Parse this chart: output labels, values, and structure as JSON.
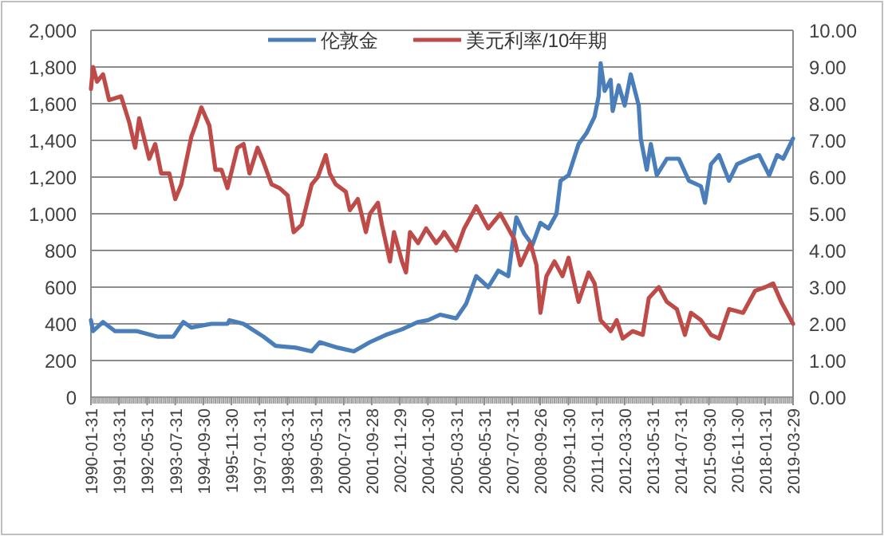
{
  "chart_data": {
    "type": "line",
    "legend": "top",
    "grid": "y",
    "marker": "none",
    "line_style": "solid",
    "xlim": [
      "1990-01-31",
      "2019-03-29"
    ],
    "xticks": [
      "1990-01-31",
      "1991-03-31",
      "1992-05-31",
      "1993-07-31",
      "1994-09-30",
      "1995-11-30",
      "1997-01-31",
      "1998-03-31",
      "1999-05-31",
      "2000-07-31",
      "2001-09-28",
      "2002-11-29",
      "2004-01-30",
      "2005-03-31",
      "2006-05-31",
      "2007-07-31",
      "2008-09-26",
      "2009-11-30",
      "2011-01-31",
      "2012-03-30",
      "2013-05-31",
      "2014-07-31",
      "2015-09-30",
      "2016-11-30",
      "2018-01-31",
      "2019-03-29"
    ],
    "ylim": [
      0,
      2000
    ],
    "yticks": [
      0,
      {
        "value": 200,
        "label": "200"
      },
      {
        "value": 400,
        "label": "400"
      },
      {
        "value": 600,
        "label": "600"
      },
      {
        "value": 800,
        "label": "800"
      },
      {
        "value": 1000,
        "label": "1,000"
      },
      {
        "value": 1200,
        "label": "1,200"
      },
      {
        "value": 1400,
        "label": "1,400"
      },
      {
        "value": 1600,
        "label": "1,600"
      },
      {
        "value": 1800,
        "label": "1,800"
      },
      {
        "value": 2000,
        "label": "2,000"
      }
    ],
    "y2lim": [
      0,
      10
    ],
    "y2ticks": [
      {
        "value": 0,
        "label": "0.00"
      },
      {
        "value": 1,
        "label": "1.00"
      },
      {
        "value": 2,
        "label": "2.00"
      },
      {
        "value": 3,
        "label": "3.00"
      },
      {
        "value": 4,
        "label": "4.00"
      },
      {
        "value": 5,
        "label": "5.00"
      },
      {
        "value": 6,
        "label": "6.00"
      },
      {
        "value": 7,
        "label": "7.00"
      },
      {
        "value": 8,
        "label": "8.00"
      },
      {
        "value": 9,
        "label": "9.00"
      },
      {
        "value": 10,
        "label": "10.00"
      }
    ],
    "series": [
      {
        "name": "伦敦金",
        "color": "#4a7ebb",
        "x": [
          "1990-01-31",
          "1990-03",
          "1990-08",
          "1991-02",
          "1992-01",
          "1992-11",
          "1993-07",
          "1993-12",
          "1994-04",
          "1995-02",
          "1995-10",
          "1995-11",
          "1996-06",
          "1997-04",
          "1997-10",
          "1998-08",
          "1999-04",
          "1999-08",
          "2000-05",
          "2001-01",
          "2001-09",
          "2002-05",
          "2003-01",
          "2003-09",
          "2004-02",
          "2004-08",
          "2005-04",
          "2005-09",
          "2006-02",
          "2006-08",
          "2007-01",
          "2007-06",
          "2007-08",
          "2007-10",
          "2008-02",
          "2008-06",
          "2008-10",
          "2009-02",
          "2009-06",
          "2009-08",
          "2009-12",
          "2010-05",
          "2010-09",
          "2011-01",
          "2011-03",
          "2011-04",
          "2011-06",
          "2011-09",
          "2011-10",
          "2012-01",
          "2012-04",
          "2012-07",
          "2012-11",
          "2012-12",
          "2013-03",
          "2013-05",
          "2013-08",
          "2014-01",
          "2014-07",
          "2014-12",
          "2015-06",
          "2015-08",
          "2015-11",
          "2016-03",
          "2016-08",
          "2016-12",
          "2017-06",
          "2017-11",
          "2018-04",
          "2018-08",
          "2018-11",
          "2019-03-29"
        ],
        "values": [
          420,
          360,
          410,
          360,
          360,
          330,
          330,
          410,
          380,
          400,
          400,
          420,
          400,
          330,
          280,
          270,
          250,
          300,
          270,
          250,
          300,
          340,
          370,
          410,
          420,
          450,
          430,
          510,
          660,
          600,
          690,
          660,
          830,
          980,
          890,
          830,
          950,
          920,
          1000,
          1180,
          1210,
          1380,
          1440,
          1530,
          1640,
          1820,
          1670,
          1730,
          1560,
          1700,
          1590,
          1760,
          1590,
          1410,
          1240,
          1380,
          1210,
          1300,
          1300,
          1180,
          1150,
          1060,
          1270,
          1320,
          1180,
          1270,
          1300,
          1320,
          1210,
          1320,
          1300,
          1410
        ]
      },
      {
        "name": "美元利率/10年期",
        "color": "#be4b48",
        "axis": "y2",
        "x": [
          "1990-01-31",
          "1990-03",
          "1990-05",
          "1990-08",
          "1990-11",
          "1991-05",
          "1991-09",
          "1991-12",
          "1992-02",
          "1992-07",
          "1992-10",
          "1993-01",
          "1993-05",
          "1993-08",
          "1993-11",
          "1994-04",
          "1994-06",
          "1994-09",
          "1995-01",
          "1995-04",
          "1995-07",
          "1995-10",
          "1996-03",
          "1996-06",
          "1996-09",
          "1997-01",
          "1997-04",
          "1997-08",
          "1997-12",
          "1998-04",
          "1998-07",
          "1998-11",
          "1999-04",
          "1999-07",
          "1999-11",
          "2000-01",
          "2000-04",
          "2000-09",
          "2000-11",
          "2001-03",
          "2001-07",
          "2001-09",
          "2002-01",
          "2002-03",
          "2002-07",
          "2002-09",
          "2003-01",
          "2003-03",
          "2003-05",
          "2003-09",
          "2004-01",
          "2004-06",
          "2004-09",
          "2004-10",
          "2005-04",
          "2005-08",
          "2006-02",
          "2006-08",
          "2007-02",
          "2007-09",
          "2007-12",
          "2008-05",
          "2008-08",
          "2008-10",
          "2009-01",
          "2009-05",
          "2009-09",
          "2009-12",
          "2010-05",
          "2010-10",
          "2011-01",
          "2011-04",
          "2011-09",
          "2011-12",
          "2012-03",
          "2012-08",
          "2013-01",
          "2013-04",
          "2013-09",
          "2014-01",
          "2014-06",
          "2014-10",
          "2015-01",
          "2015-06",
          "2015-11",
          "2016-03",
          "2016-08",
          "2017-03",
          "2017-09",
          "2018-02",
          "2018-06",
          "2018-10",
          "2019-03-29"
        ],
        "values": [
          8.4,
          9.0,
          8.6,
          8.8,
          8.1,
          8.2,
          7.5,
          6.8,
          7.6,
          6.5,
          6.9,
          6.1,
          6.1,
          5.4,
          5.8,
          7.1,
          7.4,
          7.9,
          7.4,
          6.2,
          6.2,
          5.7,
          6.8,
          6.9,
          6.1,
          6.8,
          6.4,
          5.8,
          5.7,
          5.5,
          4.5,
          4.7,
          5.8,
          6.0,
          6.6,
          6.1,
          5.8,
          5.6,
          5.1,
          5.4,
          4.5,
          5.0,
          5.3,
          4.7,
          3.7,
          4.5,
          3.7,
          3.4,
          4.5,
          4.2,
          4.6,
          4.2,
          4.4,
          4.5,
          4.0,
          4.6,
          5.2,
          4.6,
          5.0,
          4.3,
          3.6,
          4.2,
          3.6,
          2.3,
          3.3,
          3.7,
          3.3,
          3.8,
          2.6,
          3.4,
          3.1,
          2.1,
          1.8,
          2.1,
          1.6,
          1.8,
          1.7,
          2.7,
          3.0,
          2.6,
          2.4,
          1.7,
          2.3,
          2.1,
          1.7,
          1.6,
          2.4,
          2.3,
          2.9,
          3.0,
          3.1,
          2.6,
          2.0
        ]
      }
    ]
  }
}
